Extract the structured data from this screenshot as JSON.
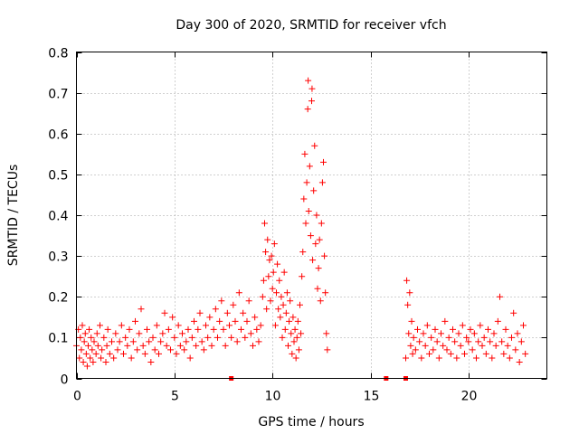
{
  "chart_data": {
    "type": "scatter",
    "title": "Day 300 of 2020, SRMTID for receiver vfch",
    "xlabel": "GPS time / hours",
    "ylabel": "SRMTID / TECUs",
    "xlim": [
      0,
      24
    ],
    "ylim": [
      0,
      0.8
    ],
    "xticks": [
      0,
      5,
      10,
      15,
      20
    ],
    "yticks": [
      0,
      0.1,
      0.2,
      0.3,
      0.4,
      0.5,
      0.6,
      0.7,
      0.8
    ],
    "xtick_labels": [
      "0",
      "5",
      "10",
      "15",
      "20"
    ],
    "ytick_labels": [
      "0",
      "0.1",
      "0.2",
      "0.3",
      "0.4",
      "0.5",
      "0.6",
      "0.7",
      "0.8"
    ],
    "grid": true,
    "marker": "+",
    "color": "#ff0000",
    "gap_markers_x": [
      7.9,
      15.8,
      16.8
    ],
    "series": [
      {
        "name": "SRMTID",
        "points": [
          [
            0.0,
            0.08
          ],
          [
            0.1,
            0.12
          ],
          [
            0.15,
            0.05
          ],
          [
            0.2,
            0.1
          ],
          [
            0.25,
            0.07
          ],
          [
            0.3,
            0.13
          ],
          [
            0.35,
            0.04
          ],
          [
            0.4,
            0.09
          ],
          [
            0.45,
            0.11
          ],
          [
            0.5,
            0.06
          ],
          [
            0.55,
            0.03
          ],
          [
            0.6,
            0.08
          ],
          [
            0.65,
            0.12
          ],
          [
            0.7,
            0.05
          ],
          [
            0.75,
            0.1
          ],
          [
            0.8,
            0.07
          ],
          [
            0.85,
            0.04
          ],
          [
            0.9,
            0.09
          ],
          [
            1.0,
            0.06
          ],
          [
            1.05,
            0.11
          ],
          [
            1.1,
            0.08
          ],
          [
            1.2,
            0.13
          ],
          [
            1.25,
            0.05
          ],
          [
            1.3,
            0.07
          ],
          [
            1.4,
            0.1
          ],
          [
            1.5,
            0.04
          ],
          [
            1.55,
            0.08
          ],
          [
            1.6,
            0.12
          ],
          [
            1.7,
            0.06
          ],
          [
            1.8,
            0.09
          ],
          [
            1.9,
            0.05
          ],
          [
            2.0,
            0.11
          ],
          [
            2.1,
            0.07
          ],
          [
            2.2,
            0.09
          ],
          [
            2.3,
            0.13
          ],
          [
            2.4,
            0.06
          ],
          [
            2.5,
            0.1
          ],
          [
            2.6,
            0.08
          ],
          [
            2.7,
            0.12
          ],
          [
            2.8,
            0.05
          ],
          [
            2.9,
            0.09
          ],
          [
            3.0,
            0.14
          ],
          [
            3.1,
            0.07
          ],
          [
            3.2,
            0.11
          ],
          [
            3.3,
            0.17
          ],
          [
            3.4,
            0.08
          ],
          [
            3.5,
            0.06
          ],
          [
            3.6,
            0.12
          ],
          [
            3.7,
            0.09
          ],
          [
            3.8,
            0.04
          ],
          [
            3.9,
            0.1
          ],
          [
            4.0,
            0.07
          ],
          [
            4.1,
            0.13
          ],
          [
            4.2,
            0.06
          ],
          [
            4.3,
            0.09
          ],
          [
            4.4,
            0.11
          ],
          [
            4.5,
            0.16
          ],
          [
            4.6,
            0.08
          ],
          [
            4.7,
            0.12
          ],
          [
            4.8,
            0.07
          ],
          [
            4.9,
            0.15
          ],
          [
            5.0,
            0.1
          ],
          [
            5.1,
            0.06
          ],
          [
            5.2,
            0.13
          ],
          [
            5.3,
            0.08
          ],
          [
            5.4,
            0.11
          ],
          [
            5.5,
            0.07
          ],
          [
            5.6,
            0.09
          ],
          [
            5.7,
            0.12
          ],
          [
            5.8,
            0.05
          ],
          [
            5.9,
            0.1
          ],
          [
            6.0,
            0.14
          ],
          [
            6.1,
            0.08
          ],
          [
            6.2,
            0.12
          ],
          [
            6.3,
            0.16
          ],
          [
            6.4,
            0.09
          ],
          [
            6.5,
            0.07
          ],
          [
            6.6,
            0.13
          ],
          [
            6.7,
            0.1
          ],
          [
            6.8,
            0.15
          ],
          [
            6.9,
            0.08
          ],
          [
            7.0,
            0.12
          ],
          [
            7.1,
            0.17
          ],
          [
            7.2,
            0.1
          ],
          [
            7.3,
            0.14
          ],
          [
            7.4,
            0.19
          ],
          [
            7.5,
            0.12
          ],
          [
            7.6,
            0.08
          ],
          [
            7.7,
            0.16
          ],
          [
            7.8,
            0.13
          ],
          [
            7.9,
            0.1
          ],
          [
            8.0,
            0.18
          ],
          [
            8.1,
            0.14
          ],
          [
            8.2,
            0.09
          ],
          [
            8.3,
            0.21
          ],
          [
            8.4,
            0.12
          ],
          [
            8.5,
            0.16
          ],
          [
            8.6,
            0.1
          ],
          [
            8.7,
            0.14
          ],
          [
            8.8,
            0.19
          ],
          [
            8.9,
            0.11
          ],
          [
            9.0,
            0.08
          ],
          [
            9.1,
            0.15
          ],
          [
            9.2,
            0.12
          ],
          [
            9.3,
            0.09
          ],
          [
            9.4,
            0.13
          ],
          [
            9.5,
            0.2
          ],
          [
            9.55,
            0.24
          ],
          [
            9.6,
            0.38
          ],
          [
            9.65,
            0.31
          ],
          [
            9.7,
            0.17
          ],
          [
            9.75,
            0.34
          ],
          [
            9.8,
            0.25
          ],
          [
            9.85,
            0.29
          ],
          [
            9.9,
            0.19
          ],
          [
            9.95,
            0.3
          ],
          [
            10.0,
            0.22
          ],
          [
            10.05,
            0.26
          ],
          [
            10.1,
            0.33
          ],
          [
            10.15,
            0.13
          ],
          [
            10.2,
            0.21
          ],
          [
            10.25,
            0.28
          ],
          [
            10.3,
            0.17
          ],
          [
            10.35,
            0.24
          ],
          [
            10.4,
            0.15
          ],
          [
            10.45,
            0.2
          ],
          [
            10.5,
            0.1
          ],
          [
            10.55,
            0.18
          ],
          [
            10.6,
            0.26
          ],
          [
            10.65,
            0.12
          ],
          [
            10.7,
            0.16
          ],
          [
            10.75,
            0.21
          ],
          [
            10.8,
            0.08
          ],
          [
            10.85,
            0.14
          ],
          [
            10.9,
            0.19
          ],
          [
            10.95,
            0.11
          ],
          [
            11.0,
            0.06
          ],
          [
            11.05,
            0.15
          ],
          [
            11.1,
            0.09
          ],
          [
            11.15,
            0.12
          ],
          [
            11.2,
            0.05
          ],
          [
            11.25,
            0.1
          ],
          [
            11.3,
            0.14
          ],
          [
            11.35,
            0.07
          ],
          [
            11.4,
            0.18
          ],
          [
            11.45,
            0.11
          ],
          [
            11.5,
            0.25
          ],
          [
            11.55,
            0.31
          ],
          [
            11.6,
            0.44
          ],
          [
            11.65,
            0.55
          ],
          [
            11.7,
            0.38
          ],
          [
            11.75,
            0.48
          ],
          [
            11.8,
            0.66
          ],
          [
            11.82,
            0.73
          ],
          [
            11.85,
            0.41
          ],
          [
            11.9,
            0.52
          ],
          [
            11.95,
            0.35
          ],
          [
            12.0,
            0.68
          ],
          [
            12.02,
            0.71
          ],
          [
            12.05,
            0.29
          ],
          [
            12.1,
            0.46
          ],
          [
            12.15,
            0.57
          ],
          [
            12.2,
            0.33
          ],
          [
            12.25,
            0.4
          ],
          [
            12.3,
            0.22
          ],
          [
            12.35,
            0.27
          ],
          [
            12.4,
            0.34
          ],
          [
            12.45,
            0.19
          ],
          [
            12.5,
            0.38
          ],
          [
            12.55,
            0.48
          ],
          [
            12.6,
            0.53
          ],
          [
            12.65,
            0.3
          ],
          [
            12.7,
            0.21
          ],
          [
            12.75,
            0.11
          ],
          [
            12.8,
            0.07
          ],
          [
            16.8,
            0.05
          ],
          [
            16.85,
            0.24
          ],
          [
            16.9,
            0.18
          ],
          [
            16.95,
            0.11
          ],
          [
            17.0,
            0.21
          ],
          [
            17.05,
            0.08
          ],
          [
            17.1,
            0.14
          ],
          [
            17.15,
            0.06
          ],
          [
            17.2,
            0.1
          ],
          [
            17.3,
            0.07
          ],
          [
            17.4,
            0.12
          ],
          [
            17.5,
            0.09
          ],
          [
            17.6,
            0.05
          ],
          [
            17.7,
            0.11
          ],
          [
            17.8,
            0.08
          ],
          [
            17.9,
            0.13
          ],
          [
            18.0,
            0.06
          ],
          [
            18.1,
            0.1
          ],
          [
            18.2,
            0.07
          ],
          [
            18.3,
            0.12
          ],
          [
            18.4,
            0.09
          ],
          [
            18.5,
            0.05
          ],
          [
            18.6,
            0.11
          ],
          [
            18.7,
            0.08
          ],
          [
            18.8,
            0.14
          ],
          [
            18.9,
            0.07
          ],
          [
            19.0,
            0.1
          ],
          [
            19.1,
            0.06
          ],
          [
            19.2,
            0.12
          ],
          [
            19.3,
            0.09
          ],
          [
            19.4,
            0.05
          ],
          [
            19.5,
            0.11
          ],
          [
            19.6,
            0.08
          ],
          [
            19.7,
            0.13
          ],
          [
            19.8,
            0.06
          ],
          [
            19.9,
            0.1
          ],
          [
            20.0,
            0.09
          ],
          [
            20.1,
            0.12
          ],
          [
            20.2,
            0.07
          ],
          [
            20.3,
            0.11
          ],
          [
            20.4,
            0.05
          ],
          [
            20.5,
            0.09
          ],
          [
            20.6,
            0.13
          ],
          [
            20.7,
            0.08
          ],
          [
            20.8,
            0.1
          ],
          [
            20.9,
            0.06
          ],
          [
            21.0,
            0.12
          ],
          [
            21.1,
            0.09
          ],
          [
            21.2,
            0.05
          ],
          [
            21.3,
            0.11
          ],
          [
            21.4,
            0.08
          ],
          [
            21.5,
            0.14
          ],
          [
            21.6,
            0.2
          ],
          [
            21.7,
            0.09
          ],
          [
            21.8,
            0.06
          ],
          [
            21.9,
            0.12
          ],
          [
            22.0,
            0.08
          ],
          [
            22.1,
            0.05
          ],
          [
            22.2,
            0.1
          ],
          [
            22.3,
            0.16
          ],
          [
            22.4,
            0.07
          ],
          [
            22.5,
            0.11
          ],
          [
            22.6,
            0.04
          ],
          [
            22.7,
            0.09
          ],
          [
            22.8,
            0.13
          ],
          [
            22.9,
            0.06
          ]
        ]
      }
    ]
  }
}
